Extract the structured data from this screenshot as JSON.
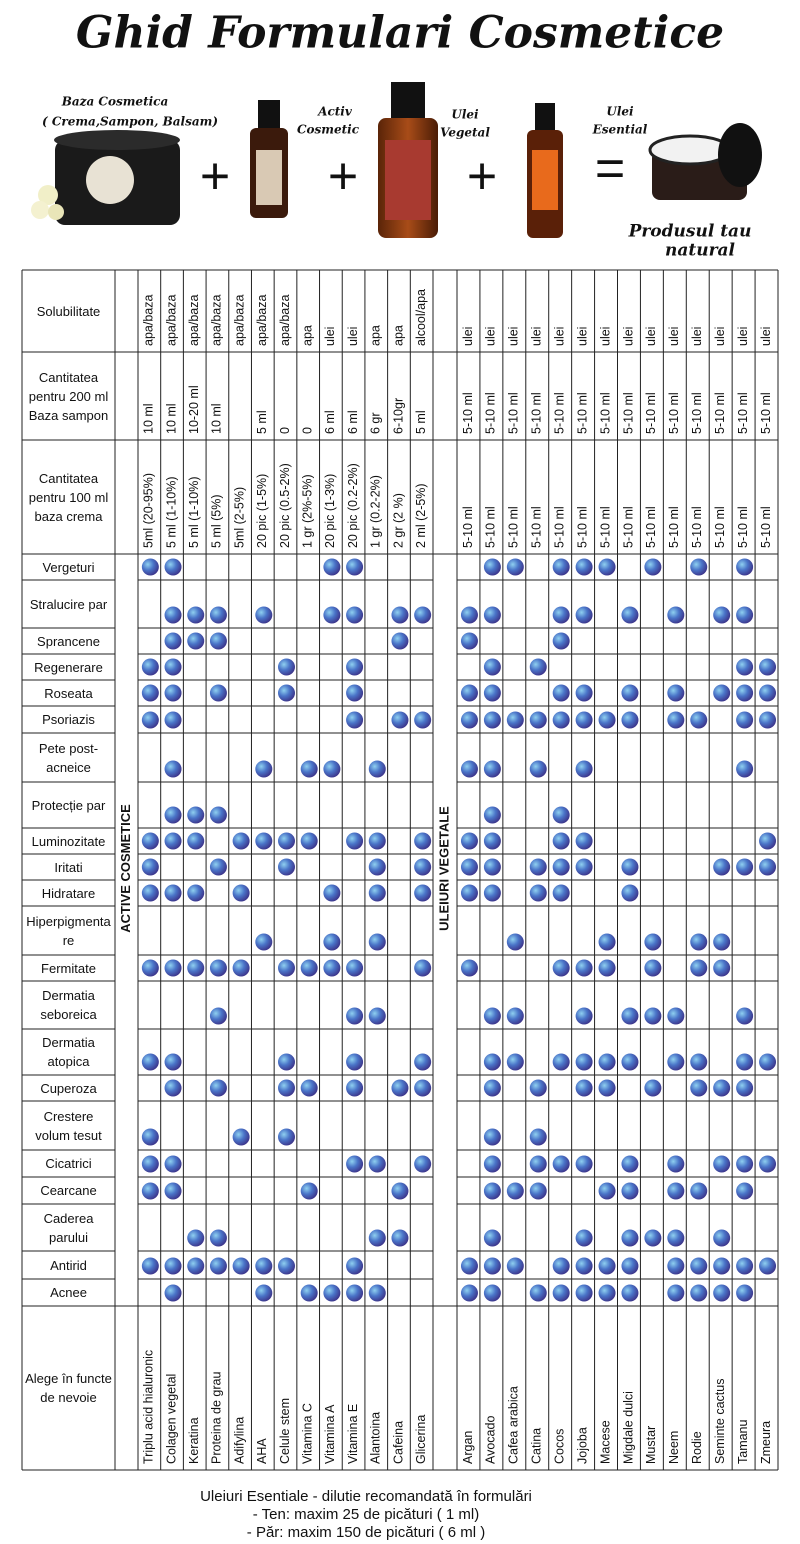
{
  "header": {
    "title": "Ghid Formulari Cosmetice",
    "products": [
      "Baza Cosmetica",
      "( Crema,Sampon, Balsam)",
      "Activ",
      "Cosmetic",
      "Ulei",
      "Vegetal",
      "Ulei",
      "Esential",
      "Produsul tau",
      "natural"
    ]
  },
  "table": {
    "groups": [
      "ACTIVE COSMETICE",
      "ULEIURI VEGETALE"
    ],
    "corner_label": "Alege în functe de nevoie",
    "columns": [
      "Triplu acid hialuronic",
      "Colagen vegetal",
      "Keratina",
      "Proteina de grau",
      "Adifylina",
      "AHA",
      "Celule stem",
      "Vitamina C",
      "Vitamina A",
      "Vitamina E",
      "Alantoina",
      "Cafeina",
      "Glicerina",
      "Argan",
      "Avocado",
      "Cafea arabica",
      "Catina",
      "Cocos",
      "Jojoba",
      "Macese",
      "Migdale dulci",
      "Mustar",
      "Neem",
      "Rodie",
      "Seminte cactus",
      "Tamanu",
      "Zmeura"
    ],
    "info_rows": [
      {
        "label": "Solubilitate",
        "values": [
          "apa/baza",
          "apa/baza",
          "apa/baza",
          "apa/baza",
          "apa/baza",
          "apa/baza",
          "apa/baza",
          "apa",
          "ulei",
          "ulei",
          "apa",
          "apa",
          "alcool/apa",
          "ulei",
          "ulei",
          "ulei",
          "ulei",
          "ulei",
          "ulei",
          "ulei",
          "ulei",
          "ulei",
          "ulei",
          "ulei",
          "ulei",
          "ulei",
          "ulei"
        ]
      },
      {
        "label": "Cantitatea pentru 200 ml Baza sampon",
        "values": [
          "10 ml",
          "10 ml",
          "10-20 ml",
          "10 ml",
          null,
          "5 ml",
          "0",
          "0",
          "6 ml",
          "6 ml",
          "6 gr",
          "6-10gr",
          "5 ml",
          "5-10 ml",
          "5-10 ml",
          "5-10 ml",
          "5-10 ml",
          "5-10 ml",
          "5-10 ml",
          "5-10 ml",
          "5-10 ml",
          "5-10 ml",
          "5-10 ml",
          "5-10 ml",
          "5-10 ml",
          "5-10 ml",
          "5-10 ml"
        ]
      },
      {
        "label": "Cantitatea pentru 100 ml baza crema",
        "values": [
          "5ml (20-95%)",
          "5 ml (1-10%)",
          "5 ml (1-10%)",
          "5 ml (5%)",
          "5ml (2-5%)",
          "20 pic (1-5%)",
          "20 pic (0.5-2%)",
          "1 gr (2%-5%)",
          "20 pic (1-3%)",
          "20 pic (0.2-2%)",
          "1 gr (0.2-2%)",
          "2 gr (2 %)",
          "2 ml (2-5%)",
          "5-10 ml",
          "5-10 ml",
          "5-10 ml",
          "5-10 ml",
          "5-10 ml",
          "5-10 ml",
          "5-10 ml",
          "5-10 ml",
          "5-10 ml",
          "5-10 ml",
          "5-10 ml",
          "5-10 ml",
          "5-10 ml",
          "5-10 ml"
        ]
      }
    ],
    "rows": [
      {
        "label": "Vergeturi",
        "cols": [
          0,
          1,
          8,
          9,
          14,
          15,
          17,
          18,
          19,
          21,
          23,
          25
        ]
      },
      {
        "label": "Stralucire par",
        "cols": [
          1,
          2,
          3,
          5,
          8,
          9,
          11,
          12,
          13,
          14,
          17,
          18,
          20,
          22,
          24,
          25
        ]
      },
      {
        "label": "Sprancene",
        "cols": [
          1,
          2,
          3,
          11,
          13,
          17
        ]
      },
      {
        "label": "Regenerare",
        "cols": [
          0,
          1,
          6,
          9,
          14,
          16,
          25,
          26
        ]
      },
      {
        "label": "Roseata",
        "cols": [
          0,
          1,
          3,
          6,
          9,
          13,
          14,
          17,
          18,
          20,
          22,
          24,
          25,
          26
        ]
      },
      {
        "label": "Psoriazis",
        "cols": [
          0,
          1,
          9,
          11,
          12,
          13,
          14,
          15,
          16,
          17,
          18,
          19,
          20,
          22,
          23,
          25,
          26
        ]
      },
      {
        "label": "Pete post-acneice",
        "cols": [
          1,
          5,
          7,
          8,
          10,
          13,
          14,
          16,
          18,
          25
        ]
      },
      {
        "label": "Protecție par",
        "cols": [
          1,
          2,
          3,
          14,
          17
        ]
      },
      {
        "label": "Luminozitate",
        "cols": [
          0,
          1,
          2,
          4,
          5,
          6,
          7,
          9,
          10,
          12,
          13,
          14,
          17,
          18,
          26
        ]
      },
      {
        "label": "Iritati",
        "cols": [
          0,
          3,
          6,
          10,
          12,
          13,
          14,
          16,
          17,
          18,
          20,
          24,
          25,
          26
        ]
      },
      {
        "label": "Hidratare",
        "cols": [
          0,
          1,
          2,
          4,
          8,
          10,
          12,
          13,
          14,
          16,
          17,
          20
        ]
      },
      {
        "label": "Hiperpigmentare",
        "cols": [
          5,
          8,
          10,
          15,
          19,
          21,
          23,
          24
        ]
      },
      {
        "label": "Fermitate",
        "cols": [
          0,
          1,
          2,
          3,
          4,
          6,
          7,
          8,
          9,
          12,
          13,
          17,
          18,
          19,
          21,
          23,
          24
        ]
      },
      {
        "label": "Dermatia seboreica",
        "cols": [
          3,
          9,
          10,
          14,
          15,
          18,
          20,
          21,
          22,
          25
        ]
      },
      {
        "label": "Dermatia atopica",
        "cols": [
          0,
          1,
          6,
          9,
          12,
          14,
          15,
          17,
          18,
          19,
          20,
          22,
          23,
          25,
          26
        ]
      },
      {
        "label": "Cuperoza",
        "cols": [
          1,
          3,
          6,
          7,
          9,
          11,
          12,
          14,
          16,
          18,
          19,
          21,
          23,
          24,
          25
        ]
      },
      {
        "label": "Crestere volum tesut",
        "cols": [
          0,
          4,
          6,
          14,
          16
        ]
      },
      {
        "label": "Cicatrici",
        "cols": [
          0,
          1,
          9,
          10,
          12,
          14,
          16,
          17,
          18,
          20,
          22,
          24,
          25,
          26
        ]
      },
      {
        "label": "Cearcane",
        "cols": [
          0,
          1,
          7,
          11,
          14,
          15,
          16,
          19,
          20,
          22,
          23,
          25
        ]
      },
      {
        "label": "Caderea parului",
        "cols": [
          2,
          3,
          10,
          11,
          14,
          18,
          20,
          21,
          22,
          24
        ]
      },
      {
        "label": "Antirid",
        "cols": [
          0,
          1,
          2,
          3,
          4,
          5,
          6,
          9,
          13,
          14,
          15,
          17,
          18,
          19,
          20,
          22,
          23,
          24,
          25,
          26
        ]
      },
      {
        "label": "Acnee",
        "cols": [
          1,
          5,
          7,
          8,
          9,
          10,
          13,
          14,
          16,
          17,
          18,
          19,
          20,
          22,
          23,
          24,
          25
        ]
      }
    ]
  },
  "footer": {
    "lines": [
      "Uleiuri Esentiale - dilutie recomandată în formulări",
      "- Ten: maxim 25 de picături ( 1 ml)",
      "- Păr: maxim 150 de picături ( 6 ml )"
    ]
  }
}
